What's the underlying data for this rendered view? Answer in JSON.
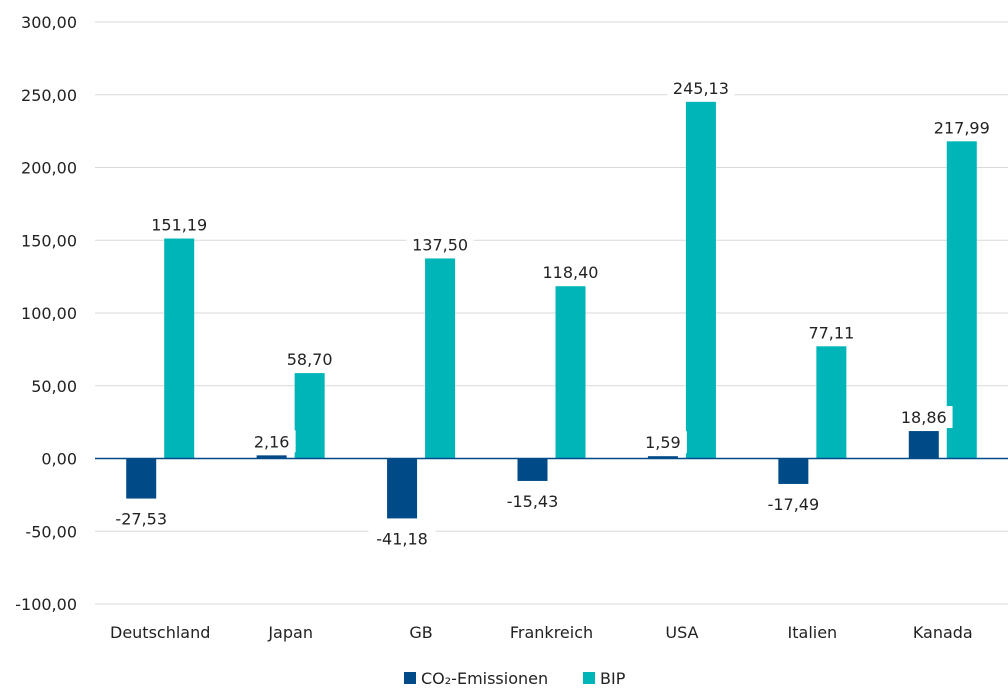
{
  "chart_data": {
    "type": "bar",
    "categories": [
      "Deutschland",
      "Japan",
      "GB",
      "Frankreich",
      "USA",
      "Italien",
      "Kanada"
    ],
    "series": [
      {
        "name": "CO₂-Emissionen",
        "color": "#004a87",
        "values": [
          -27.53,
          2.16,
          -41.18,
          -15.43,
          1.59,
          -17.49,
          18.86
        ]
      },
      {
        "name": "BIP",
        "color": "#00b5b8",
        "values": [
          151.19,
          58.7,
          137.5,
          118.4,
          245.13,
          77.11,
          217.99
        ]
      }
    ],
    "data_labels": [
      [
        "-27,53",
        "2,16",
        "-41,18",
        "-15,43",
        "1,59",
        "-17,49",
        "18,86"
      ],
      [
        "151,19",
        "58,70",
        "137,50",
        "118,40",
        "245,13",
        "77,11",
        "217,99"
      ]
    ],
    "y_ticks": [
      {
        "value": 300,
        "label": "300,00"
      },
      {
        "value": 250,
        "label": "250,00"
      },
      {
        "value": 200,
        "label": "200,00"
      },
      {
        "value": 150,
        "label": "150,00"
      },
      {
        "value": 100,
        "label": "100,00"
      },
      {
        "value": 50,
        "label": "50,00"
      },
      {
        "value": 0,
        "label": "0,00"
      },
      {
        "value": -50,
        "label": "-50,00"
      },
      {
        "value": -100,
        "label": "-100,00"
      }
    ],
    "ylim": [
      -100,
      300
    ],
    "grid": true,
    "legend": "bottom",
    "title": "",
    "xlabel": "",
    "ylabel": ""
  }
}
